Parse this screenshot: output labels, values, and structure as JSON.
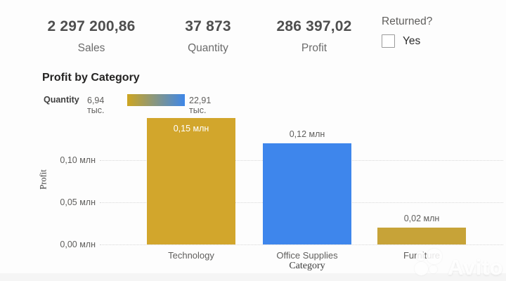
{
  "kpis": [
    {
      "value": "2 297 200,86",
      "label": "Sales"
    },
    {
      "value": "37 873",
      "label": "Quantity"
    },
    {
      "value": "286 397,02",
      "label": "Profit"
    }
  ],
  "returned_slicer": {
    "title": "Returned?",
    "option": "Yes",
    "checked": false
  },
  "chart_data": {
    "type": "bar",
    "title": "Profit by Category",
    "categories": [
      "Technology",
      "Office Supplies",
      "Furniture"
    ],
    "values": [
      0.15,
      0.12,
      0.02
    ],
    "value_labels": [
      "0,15 млн",
      "0,12 млн",
      "0,02 млн"
    ],
    "bar_colors": [
      "#d2a62c",
      "#3e86ec",
      "#c7a338"
    ],
    "xlabel": "Category",
    "ylabel": "Profit",
    "y_ticks": [
      "0,00 млн",
      "0,05 млн",
      "0,10 млн"
    ],
    "y_tick_values": [
      0.0,
      0.05,
      0.1
    ],
    "ylim": [
      0,
      0.155
    ],
    "grid": "dotted horizontal",
    "legend_position": "top-left",
    "color_scale": {
      "measure": "Quantity",
      "min_label": "6,94 тыс.",
      "max_label": "22,91 тыс.",
      "min_value": 6.94,
      "max_value": 22.91,
      "unit": "тыс.",
      "gradient_start": "#cda521",
      "gradient_end": "#3e87e8"
    }
  },
  "watermark": {
    "text": "Avito"
  }
}
